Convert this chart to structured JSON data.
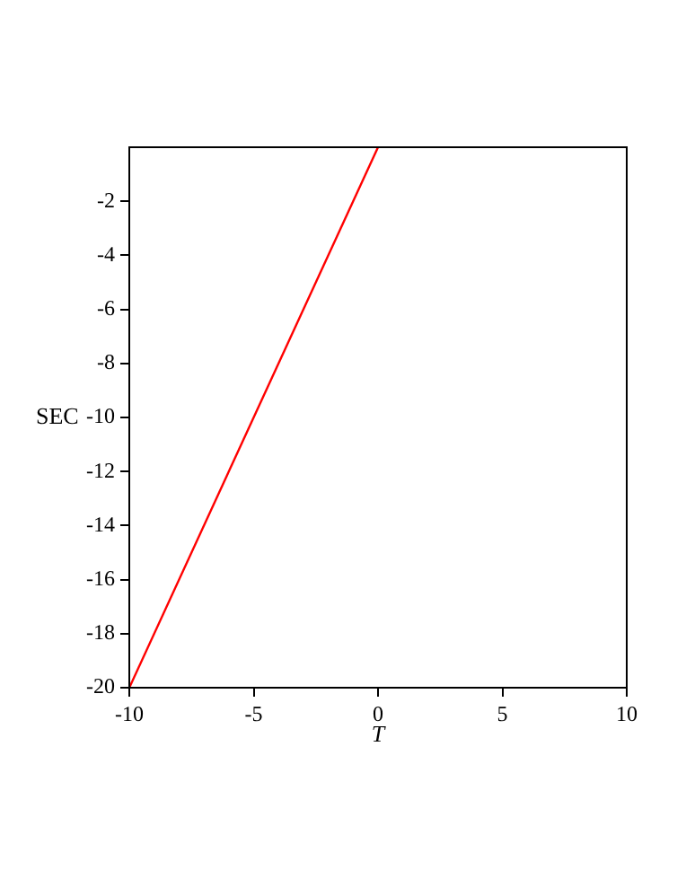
{
  "chart_data": {
    "type": "line",
    "xlabel": "T",
    "ylabel": "SEC",
    "x": [
      -10,
      0
    ],
    "series": [
      {
        "color": "#ff0000",
        "values": [
          -20,
          0
        ]
      }
    ],
    "xlim": [
      -10,
      10
    ],
    "xticks": [
      -10,
      -5,
      0,
      5,
      10
    ],
    "ylim": [
      -20,
      0
    ],
    "yticks": [
      -20,
      -18,
      -16,
      -14,
      -12,
      -10,
      -8,
      -6,
      -4,
      -2
    ],
    "grid": false,
    "legend": false,
    "marker": "none",
    "line_style": "solid"
  }
}
